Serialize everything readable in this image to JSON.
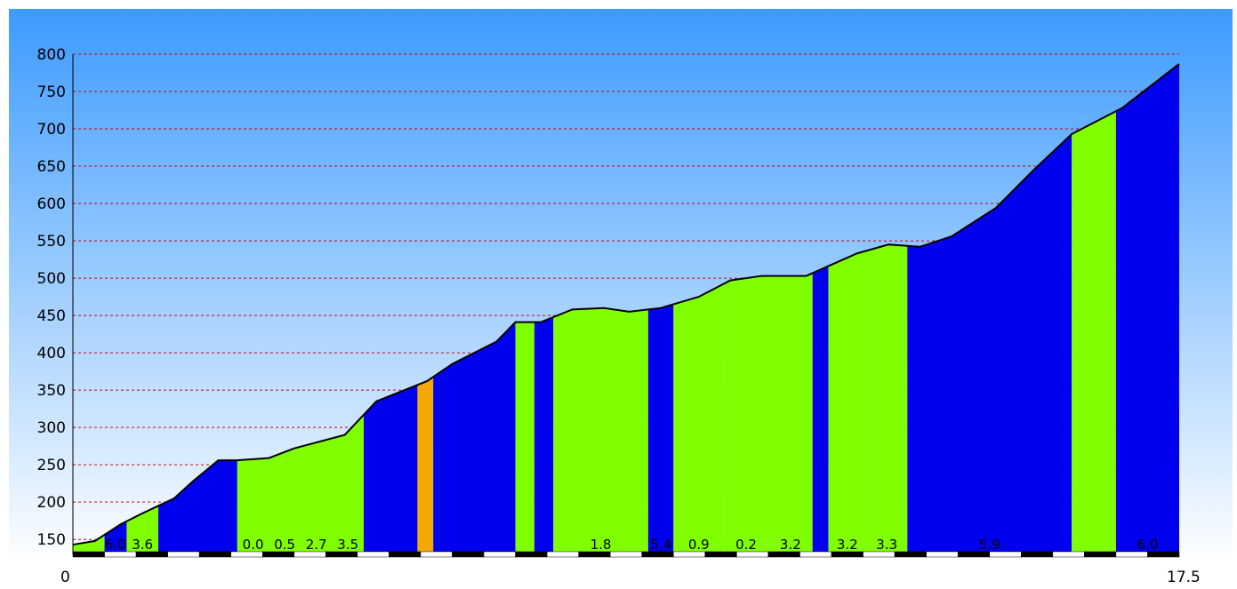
{
  "chart_data": {
    "type": "area",
    "title": "",
    "xlabel": "",
    "ylabel": "",
    "xlim": [
      0,
      17.5
    ],
    "ylim": [
      130,
      800
    ],
    "x_tick_labels": [
      "0",
      "17.5"
    ],
    "y_ticks": [
      150,
      200,
      250,
      300,
      350,
      400,
      450,
      500,
      550,
      600,
      650,
      700,
      750,
      800
    ],
    "grid": "horizontal-dashed",
    "legend": "none",
    "profile": {
      "x": [
        0,
        0.35,
        0.75,
        1.1,
        1.6,
        1.9,
        2.3,
        2.6,
        3.1,
        3.5,
        4.3,
        4.8,
        5.6,
        6.0,
        6.7,
        7.0,
        7.4,
        7.9,
        8.4,
        8.8,
        9.3,
        9.9,
        10.4,
        10.9,
        11.3,
        11.6,
        12.0,
        12.4,
        12.9,
        13.4,
        13.9,
        14.6,
        15.2,
        15.8,
        16.6,
        17.5
      ],
      "y": [
        143,
        148,
        170,
        185,
        205,
        228,
        256,
        256,
        259,
        272,
        290,
        335,
        362,
        385,
        415,
        441,
        441,
        458,
        460,
        455,
        460,
        475,
        497,
        503,
        503,
        503,
        518,
        533,
        545,
        542,
        556,
        594,
        645,
        693,
        728,
        787
      ]
    },
    "segments": [
      {
        "x0": 0.0,
        "x1": 0.5,
        "color": "#7fff00",
        "label": ""
      },
      {
        "x0": 0.5,
        "x1": 0.85,
        "color": "#0000ee",
        "label": "6.0"
      },
      {
        "x0": 0.85,
        "x1": 1.35,
        "color": "#7fff00",
        "label": "3.6"
      },
      {
        "x0": 1.35,
        "x1": 2.6,
        "color": "#0000ee",
        "label": ""
      },
      {
        "x0": 2.6,
        "x1": 3.1,
        "color": "#7fff00",
        "label": "0.0"
      },
      {
        "x0": 3.1,
        "x1": 3.6,
        "color": "#7fff00",
        "label": "0.5"
      },
      {
        "x0": 3.6,
        "x1": 4.1,
        "color": "#7fff00",
        "label": "2.7"
      },
      {
        "x0": 4.1,
        "x1": 4.6,
        "color": "#7fff00",
        "label": "3.5"
      },
      {
        "x0": 4.6,
        "x1": 5.45,
        "color": "#0000ee",
        "label": ""
      },
      {
        "x0": 5.45,
        "x1": 5.7,
        "color": "#f5a800",
        "label": ""
      },
      {
        "x0": 5.7,
        "x1": 7.0,
        "color": "#0000ee",
        "label": ""
      },
      {
        "x0": 7.0,
        "x1": 7.3,
        "color": "#7fff00",
        "label": ""
      },
      {
        "x0": 7.3,
        "x1": 7.6,
        "color": "#0000ee",
        "label": ""
      },
      {
        "x0": 7.6,
        "x1": 9.1,
        "color": "#7fff00",
        "label": "1.8"
      },
      {
        "x0": 9.1,
        "x1": 9.5,
        "color": "#0000ee",
        "label": "5.4"
      },
      {
        "x0": 9.5,
        "x1": 10.3,
        "color": "#7fff00",
        "label": "0.9"
      },
      {
        "x0": 10.3,
        "x1": 11.0,
        "color": "#7fff00",
        "label": "0.2"
      },
      {
        "x0": 11.0,
        "x1": 11.7,
        "color": "#7fff00",
        "label": "3.2"
      },
      {
        "x0": 11.7,
        "x1": 11.95,
        "color": "#0000ee",
        "label": ""
      },
      {
        "x0": 11.95,
        "x1": 12.55,
        "color": "#7fff00",
        "label": "3.2"
      },
      {
        "x0": 12.55,
        "x1": 13.2,
        "color": "#7fff00",
        "label": "3.3"
      },
      {
        "x0": 13.2,
        "x1": 15.8,
        "color": "#0000ee",
        "label": "5.9"
      },
      {
        "x0": 15.8,
        "x1": 16.5,
        "color": "#7fff00",
        "label": ""
      },
      {
        "x0": 16.5,
        "x1": 17.5,
        "color": "#0000ee",
        "label": "6.0"
      }
    ],
    "colors": {
      "sky_top": "#3d9bff",
      "sky_bottom": "#ffffff",
      "grid": "#cc0000",
      "outline": "#000000"
    }
  }
}
